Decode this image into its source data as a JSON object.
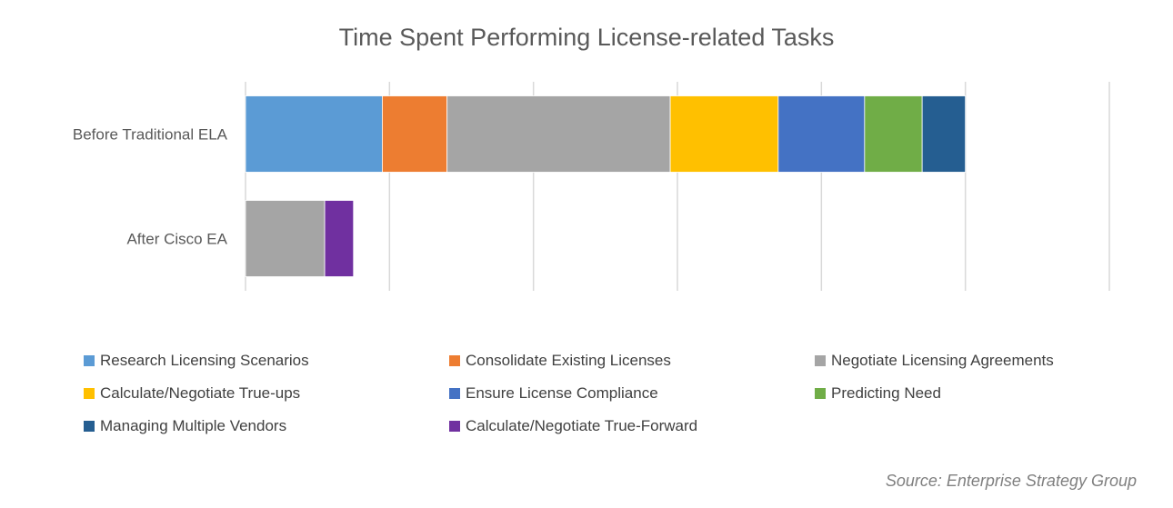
{
  "chart_data": {
    "type": "bar",
    "orientation": "horizontal",
    "stacked": true,
    "title": "Time Spent Performing License-related Tasks",
    "categories": [
      "Before Traditional ELA",
      "After Cisco EA"
    ],
    "xlim": [
      0,
      6
    ],
    "grid": true,
    "legend_position": "bottom",
    "series": [
      {
        "name": "Research Licensing Scenarios",
        "color": "#5B9BD5",
        "values": [
          0.95,
          0
        ]
      },
      {
        "name": "Consolidate Existing Licenses",
        "color": "#ED7D31",
        "values": [
          0.45,
          0
        ]
      },
      {
        "name": "Negotiate Licensing Agreements",
        "color": "#A5A5A5",
        "values": [
          1.55,
          0.55
        ]
      },
      {
        "name": "Calculate/Negotiate True-ups",
        "color": "#FFC000",
        "values": [
          0.75,
          0
        ]
      },
      {
        "name": "Ensure License Compliance",
        "color": "#4472C4",
        "values": [
          0.6,
          0
        ]
      },
      {
        "name": "Predicting Need",
        "color": "#70AD47",
        "values": [
          0.4,
          0
        ]
      },
      {
        "name": "Managing Multiple Vendors",
        "color": "#255E91",
        "values": [
          0.3,
          0
        ]
      },
      {
        "name": "Calculate/Negotiate True-Forward",
        "color": "#7030A0",
        "values": [
          0,
          0.2
        ]
      }
    ]
  },
  "source": "Source: Enterprise Strategy Group"
}
